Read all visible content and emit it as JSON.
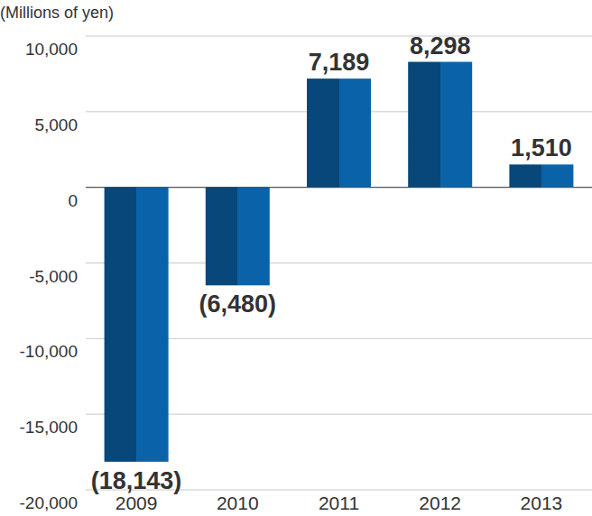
{
  "chart_data": {
    "type": "bar",
    "y_label": "(Millions of yen)",
    "categories": [
      "2009",
      "2010",
      "2011",
      "2012",
      "2013"
    ],
    "values": [
      -18143,
      -6480,
      7189,
      8298,
      1510
    ],
    "value_labels": [
      "(18,143)",
      "(6,480)",
      "7,189",
      "8,298",
      "1,510"
    ],
    "color": "#0a63a8",
    "ylim": [
      -20000,
      10000
    ],
    "yticks": [
      {
        "value": 10000,
        "label": "10,000"
      },
      {
        "value": 5000,
        "label": "5,000"
      },
      0,
      {
        "value": -5000,
        "label": "-5,000"
      },
      {
        "value": -10000,
        "label": "-10,000"
      },
      {
        "value": -15000,
        "label": "-15,000"
      },
      {
        "value": -20000,
        "label": "-20,000"
      }
    ],
    "grid": true,
    "data_labels": true
  }
}
